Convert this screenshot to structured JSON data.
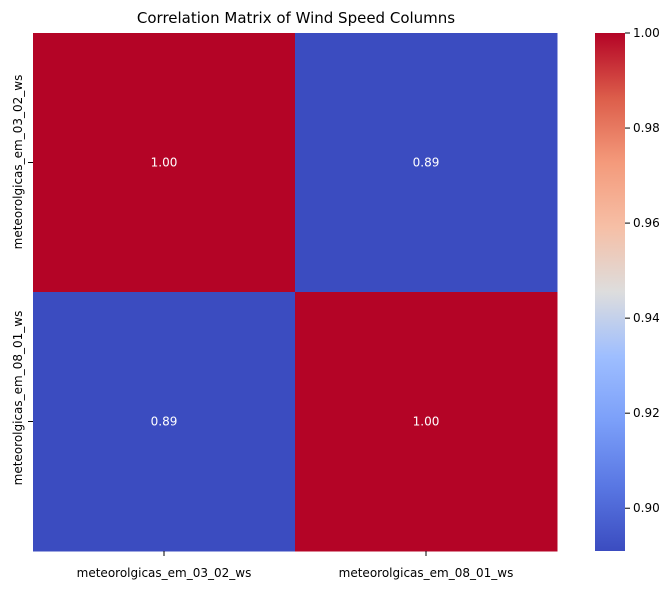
{
  "chart_data": {
    "type": "heatmap",
    "title": "Correlation Matrix of Wind Speed Columns",
    "row_labels": [
      "meteorolgicas_em_03_02_ws",
      "meteorolgicas_em_08_01_ws"
    ],
    "col_labels": [
      "meteorolgicas_em_03_02_ws",
      "meteorolgicas_em_08_01_ws"
    ],
    "values": [
      [
        1.0,
        0.89
      ],
      [
        0.89,
        1.0
      ]
    ],
    "annotations": [
      [
        "1.00",
        "0.89"
      ],
      [
        "0.89",
        "1.00"
      ]
    ],
    "colormap": "coolwarm",
    "color_low": "#3b4cc0",
    "color_mid": "#dddddd",
    "color_high": "#b40426",
    "colorbar_range": [
      0.891,
      1.0
    ],
    "colorbar_ticks": [
      0.9,
      0.92,
      0.94,
      0.96,
      0.98,
      1.0
    ],
    "colorbar_tick_labels": [
      "0.90",
      "0.92",
      "0.94",
      "0.96",
      "0.98",
      "1.00"
    ]
  }
}
